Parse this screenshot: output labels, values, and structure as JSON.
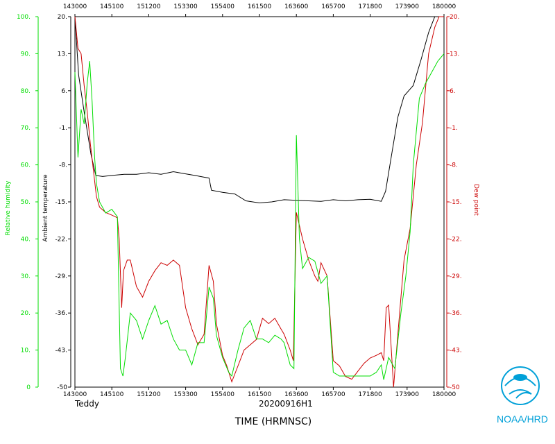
{
  "chart_data": {
    "type": "line",
    "title": "",
    "storm_name": "Teddy",
    "flight_id": "20200916H1",
    "xlabel": "TIME (HRMNSC)",
    "x_ticks": [
      "143000",
      "145100",
      "151200",
      "153300",
      "155400",
      "161500",
      "163600",
      "165700",
      "171800",
      "173900",
      "180000"
    ],
    "left_axes": [
      {
        "name": "Relative humidity",
        "color": "#00dd00",
        "ticks": [
          "0",
          "10.",
          "20.",
          "30.",
          "40.",
          "50.",
          "60.",
          "70.",
          "80.",
          "90.",
          "100."
        ],
        "ylim": [
          0,
          100
        ]
      },
      {
        "name": "Ambient temperature",
        "color": "#000000",
        "ticks": [
          "-50",
          "-43.",
          "-36.",
          "-29.",
          "-22.",
          "-15.",
          "-8.",
          "-1.",
          "6.",
          "13.",
          "20."
        ],
        "ylim": [
          -50,
          20
        ]
      }
    ],
    "right_axis": {
      "name": "Dew point",
      "color": "#cc0000",
      "ticks": [
        "-50",
        "-43.",
        "-36.",
        "-29.",
        "-22.",
        "-15.",
        "-8.",
        "-1.",
        "6.",
        "13.",
        "20."
      ],
      "ylim": [
        -50,
        20
      ]
    },
    "series": [
      {
        "name": "Ambient temperature",
        "color": "#000000",
        "axis": "temp",
        "values": [
          [
            0,
            20
          ],
          [
            0.6,
            9
          ],
          [
            1.5,
            2
          ],
          [
            2.6,
            -6
          ],
          [
            3.4,
            -10
          ],
          [
            4.5,
            -10.2
          ],
          [
            6,
            -10
          ],
          [
            8,
            -9.8
          ],
          [
            10,
            -9.8
          ],
          [
            12,
            -9.5
          ],
          [
            14,
            -9.8
          ],
          [
            16,
            -9.3
          ],
          [
            18,
            -9.7
          ],
          [
            19.5,
            -10
          ],
          [
            21.8,
            -10.5
          ],
          [
            22.2,
            -12.8
          ],
          [
            24,
            -13.2
          ],
          [
            26,
            -13.5
          ],
          [
            27.8,
            -14.8
          ],
          [
            30,
            -15.2
          ],
          [
            32,
            -15
          ],
          [
            34,
            -14.6
          ],
          [
            36,
            -14.7
          ],
          [
            38,
            -14.8
          ],
          [
            40,
            -14.9
          ],
          [
            42,
            -14.6
          ],
          [
            44,
            -14.8
          ],
          [
            46,
            -14.6
          ],
          [
            48,
            -14.5
          ],
          [
            49.8,
            -14.9
          ],
          [
            50.5,
            -13
          ],
          [
            51.5,
            -6
          ],
          [
            52.5,
            1
          ],
          [
            53.5,
            5
          ],
          [
            55,
            7
          ],
          [
            56.3,
            12
          ],
          [
            57.5,
            17
          ],
          [
            58.5,
            20
          ],
          [
            60,
            20
          ]
        ]
      },
      {
        "name": "Dew point",
        "color": "#cc0000",
        "axis": "temp",
        "values": [
          [
            0,
            20
          ],
          [
            0.5,
            14
          ],
          [
            1.0,
            13
          ],
          [
            1.5,
            7
          ],
          [
            2.0,
            2
          ],
          [
            2.5,
            -4
          ],
          [
            3.0,
            -9
          ],
          [
            3.5,
            -14
          ],
          [
            4.0,
            -16
          ],
          [
            5.0,
            -17
          ],
          [
            6.0,
            -17.5
          ],
          [
            6.9,
            -18
          ],
          [
            7.2,
            -22
          ],
          [
            7.6,
            -35
          ],
          [
            7.9,
            -28
          ],
          [
            8.5,
            -26
          ],
          [
            9.0,
            -26
          ],
          [
            10.0,
            -31
          ],
          [
            11.0,
            -33
          ],
          [
            12.0,
            -30
          ],
          [
            13.0,
            -28
          ],
          [
            14.0,
            -26.5
          ],
          [
            15.0,
            -27
          ],
          [
            16.0,
            -26
          ],
          [
            17.0,
            -27
          ],
          [
            18.0,
            -35
          ],
          [
            19.0,
            -39
          ],
          [
            20.0,
            -42
          ],
          [
            21.0,
            -40
          ],
          [
            21.8,
            -27
          ],
          [
            22.5,
            -30
          ],
          [
            23.0,
            -38
          ],
          [
            24.0,
            -44
          ],
          [
            24.7,
            -46
          ],
          [
            25.5,
            -49
          ],
          [
            26.5,
            -46
          ],
          [
            27.5,
            -43
          ],
          [
            28.5,
            -42
          ],
          [
            29.5,
            -41
          ],
          [
            30.5,
            -37
          ],
          [
            31.5,
            -38
          ],
          [
            32.5,
            -37
          ],
          [
            33.5,
            -39
          ],
          [
            34.0,
            -40
          ],
          [
            35.0,
            -43
          ],
          [
            35.5,
            -45
          ],
          [
            36.0,
            -17
          ],
          [
            37.0,
            -22
          ],
          [
            38.0,
            -26
          ],
          [
            39.0,
            -29
          ],
          [
            39.5,
            -30
          ],
          [
            40.0,
            -26.5
          ],
          [
            41.0,
            -29
          ],
          [
            42.0,
            -45
          ],
          [
            43.0,
            -46
          ],
          [
            44.0,
            -48
          ],
          [
            45.0,
            -48.5
          ],
          [
            46.0,
            -47
          ],
          [
            47.0,
            -45.5
          ],
          [
            48.0,
            -44.5
          ],
          [
            49.0,
            -44
          ],
          [
            49.8,
            -43.5
          ],
          [
            50.2,
            -45
          ],
          [
            50.6,
            -35
          ],
          [
            51.0,
            -34.5
          ],
          [
            51.8,
            -50
          ],
          [
            52.5,
            -40
          ],
          [
            53.5,
            -26
          ],
          [
            54.5,
            -20
          ],
          [
            55.5,
            -8
          ],
          [
            56.5,
            0
          ],
          [
            57.5,
            13
          ],
          [
            58.5,
            18
          ],
          [
            59.2,
            20
          ],
          [
            60,
            20
          ]
        ]
      },
      {
        "name": "Relative humidity",
        "color": "#00dd00",
        "axis": "rh",
        "values": [
          [
            0,
            85
          ],
          [
            0.5,
            62
          ],
          [
            1.0,
            75
          ],
          [
            1.5,
            71
          ],
          [
            2.0,
            82
          ],
          [
            2.4,
            88
          ],
          [
            2.8,
            77
          ],
          [
            3.2,
            62
          ],
          [
            3.5,
            55
          ],
          [
            4.0,
            50
          ],
          [
            5.0,
            47
          ],
          [
            6.0,
            48
          ],
          [
            6.9,
            46
          ],
          [
            7.4,
            5
          ],
          [
            7.8,
            3
          ],
          [
            8.2,
            8
          ],
          [
            9.0,
            20
          ],
          [
            10.0,
            18
          ],
          [
            11.0,
            13
          ],
          [
            12.0,
            18
          ],
          [
            13.0,
            22
          ],
          [
            14.0,
            17
          ],
          [
            15.0,
            18
          ],
          [
            16.0,
            13
          ],
          [
            17.0,
            10
          ],
          [
            18.0,
            10
          ],
          [
            19.0,
            6
          ],
          [
            20.0,
            12
          ],
          [
            21.0,
            12
          ],
          [
            21.8,
            27
          ],
          [
            22.5,
            24
          ],
          [
            23.0,
            14
          ],
          [
            24.0,
            8
          ],
          [
            25.0,
            4
          ],
          [
            25.5,
            3
          ],
          [
            26.5,
            10
          ],
          [
            27.5,
            16
          ],
          [
            28.5,
            18
          ],
          [
            29.5,
            13
          ],
          [
            30.5,
            13
          ],
          [
            31.5,
            12
          ],
          [
            32.5,
            14
          ],
          [
            33.5,
            13
          ],
          [
            34.0,
            12
          ],
          [
            35.0,
            6
          ],
          [
            35.6,
            5
          ],
          [
            36.0,
            68
          ],
          [
            36.5,
            40
          ],
          [
            37.0,
            32
          ],
          [
            38.0,
            35
          ],
          [
            39.0,
            34
          ],
          [
            40.0,
            28
          ],
          [
            41.0,
            30
          ],
          [
            42.0,
            4
          ],
          [
            43.0,
            3
          ],
          [
            44.0,
            3
          ],
          [
            45.0,
            3
          ],
          [
            46.0,
            3
          ],
          [
            47.0,
            3
          ],
          [
            48.0,
            3
          ],
          [
            49.0,
            4
          ],
          [
            49.8,
            6
          ],
          [
            50.2,
            2
          ],
          [
            51.0,
            8
          ],
          [
            52.0,
            5
          ],
          [
            53.0,
            20
          ],
          [
            53.8,
            30
          ],
          [
            54.5,
            42
          ],
          [
            55.0,
            60
          ],
          [
            56.0,
            78
          ],
          [
            57.0,
            82
          ],
          [
            58.0,
            85
          ],
          [
            59.0,
            88
          ],
          [
            60,
            90
          ]
        ]
      }
    ],
    "grid": false
  },
  "logo": {
    "name": "noaa-logo-icon",
    "text": "NOAA/HRD",
    "color": "#00a0d8"
  }
}
